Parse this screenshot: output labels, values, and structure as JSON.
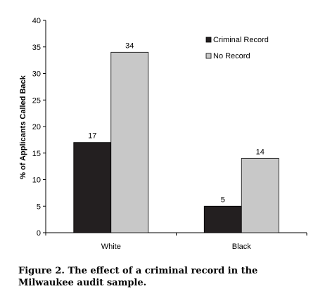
{
  "chart_data": {
    "type": "bar",
    "categories": [
      "White",
      "Black"
    ],
    "series": [
      {
        "name": "Criminal Record",
        "values": [
          17,
          5
        ],
        "color": "#231f20"
      },
      {
        "name": "No Record",
        "values": [
          34,
          14
        ],
        "color": "#c8c8c8"
      }
    ],
    "ylabel": "% of Applicants Called Back",
    "ylim": [
      0,
      40
    ],
    "yticks": [
      0,
      5,
      10,
      15,
      20,
      25,
      30,
      35,
      40
    ],
    "grid": false,
    "legend_position": "top-right",
    "data_labels": true
  },
  "caption": "Figure 2. The effect of a criminal record in the Milwaukee audit sample."
}
